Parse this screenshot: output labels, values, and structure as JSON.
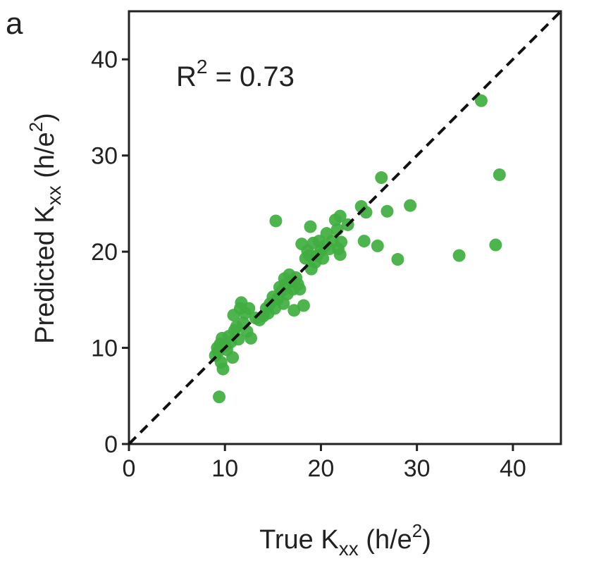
{
  "panel_label": "a",
  "chart_data": {
    "type": "scatter",
    "xlabel": {
      "main": "True K",
      "sub": "xx",
      "unit_open": " (h/e",
      "sup": "2",
      "unit_close": ")"
    },
    "ylabel": {
      "main": "Predicted K",
      "sub": "xx",
      "unit_open": " (h/e",
      "sup": "2",
      "unit_close": ")"
    },
    "annotation": {
      "base": "R",
      "sup": "2",
      "rest": " = 0.73"
    },
    "xlim": [
      0,
      45
    ],
    "ylim": [
      0,
      45
    ],
    "xticks": [
      0,
      10,
      20,
      30,
      40
    ],
    "yticks": [
      0,
      10,
      20,
      30,
      40
    ],
    "reference_line": {
      "style": "dashed",
      "color": "#111111",
      "from": [
        0,
        0
      ],
      "to": [
        45,
        45
      ]
    },
    "marker_color": "#3fae3f",
    "grid": false,
    "points": [
      [
        9.0,
        9.2
      ],
      [
        9.2,
        10.0
      ],
      [
        9.3,
        9.6
      ],
      [
        9.5,
        10.4
      ],
      [
        9.6,
        8.5
      ],
      [
        9.7,
        11.0
      ],
      [
        9.8,
        7.8
      ],
      [
        10.0,
        10.2
      ],
      [
        10.2,
        9.8
      ],
      [
        10.4,
        11.2
      ],
      [
        10.6,
        10.6
      ],
      [
        10.8,
        9.0
      ],
      [
        10.9,
        13.4
      ],
      [
        11.0,
        11.8
      ],
      [
        11.2,
        12.2
      ],
      [
        11.4,
        10.9
      ],
      [
        11.6,
        14.1
      ],
      [
        11.7,
        14.7
      ],
      [
        11.9,
        12.6
      ],
      [
        12.1,
        13.6
      ],
      [
        12.3,
        11.7
      ],
      [
        12.5,
        14.1
      ],
      [
        12.7,
        11.0
      ],
      [
        9.4,
        4.9
      ],
      [
        13.2,
        13.1
      ],
      [
        13.6,
        12.9
      ],
      [
        14.0,
        13.3
      ],
      [
        14.3,
        14.1
      ],
      [
        14.5,
        13.6
      ],
      [
        14.7,
        14.6
      ],
      [
        15.0,
        15.3
      ],
      [
        15.2,
        14.1
      ],
      [
        15.3,
        23.2
      ],
      [
        15.5,
        15.1
      ],
      [
        15.7,
        16.3
      ],
      [
        15.9,
        15.9
      ],
      [
        16.1,
        14.6
      ],
      [
        16.2,
        17.2
      ],
      [
        16.3,
        16.6
      ],
      [
        16.5,
        15.6
      ],
      [
        16.7,
        17.6
      ],
      [
        16.9,
        16.9
      ],
      [
        17.1,
        16.1
      ],
      [
        17.2,
        13.9
      ],
      [
        17.4,
        17.3
      ],
      [
        17.6,
        16.6
      ],
      [
        17.8,
        16.1
      ],
      [
        18.0,
        20.8
      ],
      [
        18.2,
        14.4
      ],
      [
        18.4,
        19.3
      ],
      [
        18.6,
        20.1
      ],
      [
        18.8,
        19.6
      ],
      [
        18.9,
        22.6
      ],
      [
        19.0,
        18.2
      ],
      [
        19.2,
        20.9
      ],
      [
        19.4,
        18.9
      ],
      [
        19.6,
        19.6
      ],
      [
        19.8,
        21.1
      ],
      [
        20.0,
        20.1
      ],
      [
        20.2,
        19.3
      ],
      [
        20.4,
        20.6
      ],
      [
        20.6,
        21.9
      ],
      [
        20.9,
        20.3
      ],
      [
        21.2,
        21.1
      ],
      [
        21.5,
        23.3
      ],
      [
        21.7,
        22.3
      ],
      [
        21.8,
        20.3
      ],
      [
        22.0,
        19.7
      ],
      [
        22.1,
        21.0
      ],
      [
        22.0,
        23.7
      ],
      [
        22.8,
        22.8
      ],
      [
        24.2,
        24.7
      ],
      [
        24.7,
        24.1
      ],
      [
        24.5,
        21.1
      ],
      [
        26.3,
        27.7
      ],
      [
        25.9,
        20.6
      ],
      [
        26.9,
        24.2
      ],
      [
        28.0,
        19.2
      ],
      [
        29.3,
        24.8
      ],
      [
        34.4,
        19.6
      ],
      [
        36.7,
        35.7
      ],
      [
        38.2,
        20.7
      ],
      [
        38.6,
        28.0
      ]
    ]
  }
}
